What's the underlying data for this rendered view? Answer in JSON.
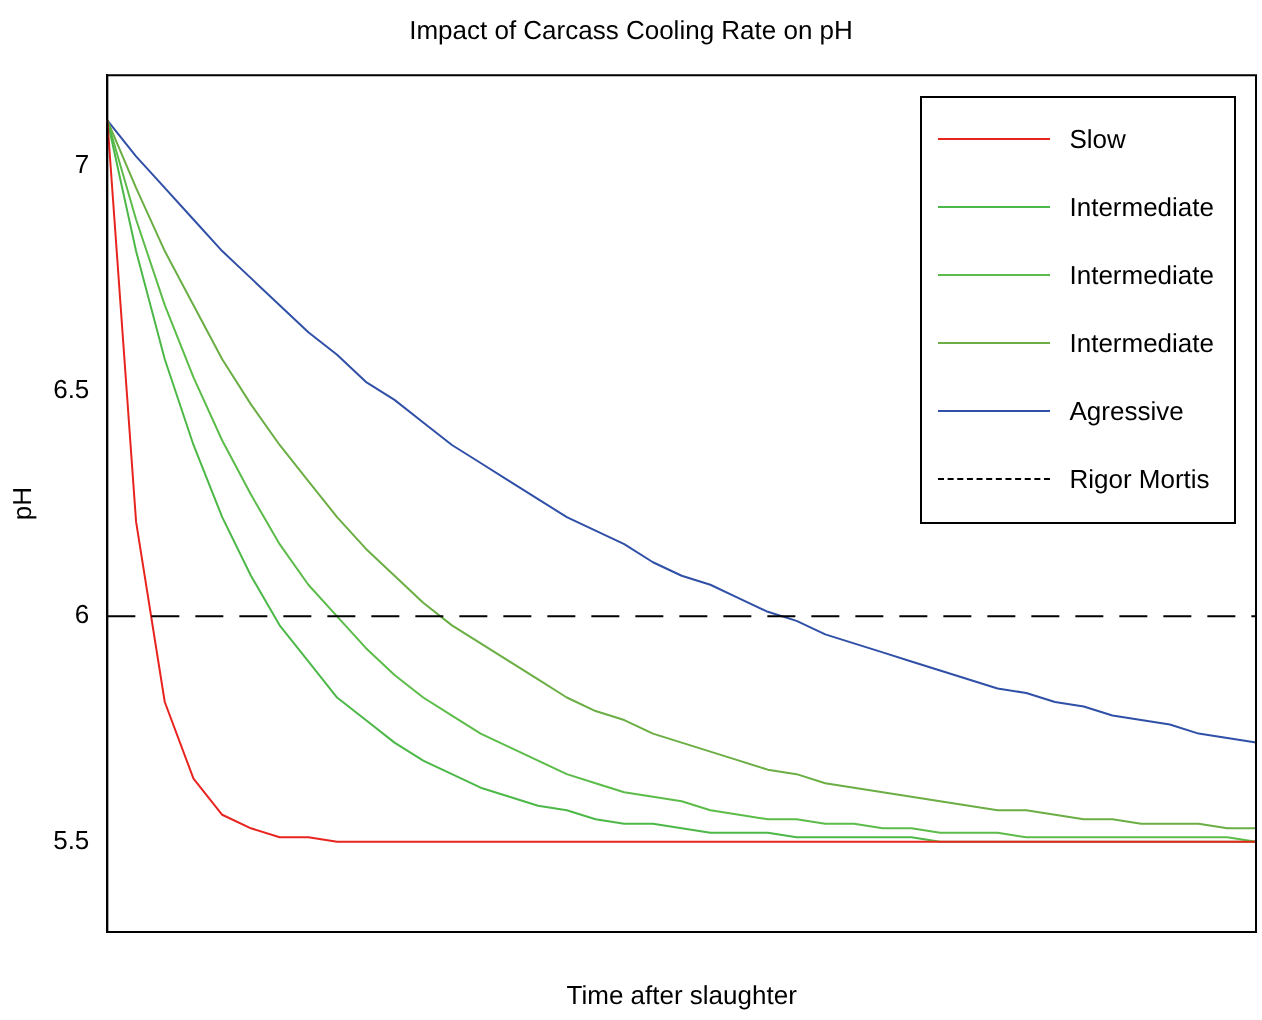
{
  "chart_data": {
    "type": "line",
    "title": "Impact of Carcass Cooling Rate on pH",
    "xlabel": "Time after slaughter",
    "ylabel": "pH",
    "categories": [
      null,
      null,
      null,
      null,
      null,
      null,
      null,
      null,
      null,
      null,
      null,
      null,
      null,
      null,
      null,
      null,
      null,
      null,
      null,
      null,
      null,
      null,
      null,
      null,
      null,
      null,
      null,
      null,
      null,
      null,
      null,
      null,
      null,
      null,
      null,
      null,
      null,
      null,
      null,
      null,
      null
    ],
    "series": [
      {
        "name": "Slow",
        "color": "#e8241f",
        "values": [
          7.1,
          6.21,
          5.81,
          5.64,
          5.56,
          5.53,
          5.51,
          5.51,
          5.5,
          5.5,
          5.5,
          5.5,
          5.5,
          5.5,
          5.5,
          5.5,
          5.5,
          5.5,
          5.5,
          5.5,
          5.5,
          5.5,
          5.5,
          5.5,
          5.5,
          5.5,
          5.5,
          5.5,
          5.5,
          5.5,
          5.5,
          5.5,
          5.5,
          5.5,
          5.5,
          5.5,
          5.5,
          5.5,
          5.5,
          5.5,
          5.5
        ]
      },
      {
        "name": "Intermediate",
        "color": "#4cb848",
        "values": [
          7.1,
          6.81,
          6.57,
          6.38,
          6.22,
          6.09,
          5.98,
          5.9,
          5.82,
          5.77,
          5.72,
          5.68,
          5.65,
          5.62,
          5.6,
          5.58,
          5.57,
          5.55,
          5.54,
          5.54,
          5.53,
          5.52,
          5.52,
          5.52,
          5.51,
          5.51,
          5.51,
          5.51,
          5.51,
          5.5,
          5.5,
          5.5,
          5.5,
          5.5,
          5.5,
          5.5,
          5.5,
          5.5,
          5.5,
          5.5,
          5.5
        ]
      },
      {
        "name": "Intermediate",
        "color": "#5cbc4a",
        "values": [
          7.1,
          6.88,
          6.69,
          6.53,
          6.39,
          6.27,
          6.16,
          6.07,
          6.0,
          5.93,
          5.87,
          5.82,
          5.78,
          5.74,
          5.71,
          5.68,
          5.65,
          5.63,
          5.61,
          5.6,
          5.59,
          5.57,
          5.56,
          5.55,
          5.55,
          5.54,
          5.54,
          5.53,
          5.53,
          5.52,
          5.52,
          5.52,
          5.51,
          5.51,
          5.51,
          5.51,
          5.51,
          5.51,
          5.51,
          5.51,
          5.5
        ]
      },
      {
        "name": "Intermediate",
        "color": "#6aae44",
        "values": [
          7.1,
          6.95,
          6.81,
          6.69,
          6.57,
          6.47,
          6.38,
          6.3,
          6.22,
          6.15,
          6.09,
          6.03,
          5.98,
          5.94,
          5.9,
          5.86,
          5.82,
          5.79,
          5.77,
          5.74,
          5.72,
          5.7,
          5.68,
          5.66,
          5.65,
          5.63,
          5.62,
          5.61,
          5.6,
          5.59,
          5.58,
          5.57,
          5.57,
          5.56,
          5.55,
          5.55,
          5.54,
          5.54,
          5.54,
          5.53,
          5.53
        ]
      },
      {
        "name": "Agressive",
        "color": "#3050a8",
        "values": [
          7.1,
          7.02,
          6.95,
          6.88,
          6.81,
          6.75,
          6.69,
          6.63,
          6.58,
          6.52,
          6.48,
          6.43,
          6.38,
          6.34,
          6.3,
          6.26,
          6.22,
          6.19,
          6.16,
          6.12,
          6.09,
          6.07,
          6.04,
          6.01,
          5.99,
          5.96,
          5.94,
          5.92,
          5.9,
          5.88,
          5.86,
          5.84,
          5.83,
          5.81,
          5.8,
          5.78,
          5.77,
          5.76,
          5.74,
          5.73,
          5.72
        ]
      }
    ],
    "ref_lines": [
      {
        "axis": "y",
        "value": 6,
        "label": "Rigor Mortis",
        "color": "#000000",
        "line_style": "dashed"
      }
    ],
    "ylim": [
      5.3,
      7.2
    ],
    "yticks": [
      5.5,
      6,
      6.5,
      7
    ],
    "grid": false,
    "legend": "top right",
    "marker": "none",
    "line_style": "solid"
  }
}
